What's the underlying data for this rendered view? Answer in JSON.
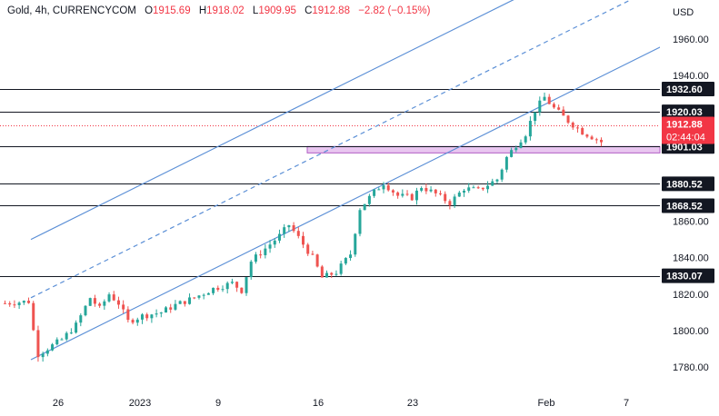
{
  "header": {
    "symbol": "Gold, 4h, CURRENCYCOM",
    "open_label": "O",
    "open": "1915.69",
    "high_label": "H",
    "high": "1918.02",
    "low_label": "L",
    "low": "1909.95",
    "close_label": "C",
    "close": "1912.88",
    "change": "−2.82 (−0.15%)"
  },
  "chart_data": {
    "type": "candlestick",
    "currency": "USD",
    "y_axis": {
      "ticks": [
        1780,
        1800,
        1820,
        1840,
        1860,
        1880,
        1900,
        1920,
        1940,
        1960
      ],
      "range": [
        1772,
        1990
      ]
    },
    "x_axis": {
      "ticks": [
        "26",
        "2023",
        "9",
        "16",
        "23",
        "Feb",
        "7"
      ]
    },
    "horizontal_levels": [
      {
        "label": "1932.60",
        "value": 1932.6
      },
      {
        "label": "1920.03",
        "value": 1920.03
      },
      {
        "label": "1901.03",
        "value": 1901.03
      },
      {
        "label": "1880.52",
        "value": 1880.52
      },
      {
        "label": "1868.52",
        "value": 1868.52
      },
      {
        "label": "1830.07",
        "value": 1830.07
      }
    ],
    "current_price": {
      "value": 1912.88,
      "label": "1912.88",
      "countdown": "02:44:04"
    },
    "support_zone": {
      "low": 1897.5,
      "high": 1901.03
    },
    "channel": {
      "lower": [
        [
          0,
          1784
        ],
        [
          125,
          1956
        ]
      ],
      "middle": [
        [
          0,
          1818
        ],
        [
          125,
          1990
        ]
      ],
      "upper": [
        [
          0,
          1850
        ],
        [
          125,
          2022
        ]
      ]
    },
    "candles": []
  },
  "colors": {
    "up": "#26a69a",
    "down": "#ef5350",
    "channel": "#5b8fd6",
    "zone_fill": "#e9c6f0",
    "zone_edge": "#b15cc4",
    "level_label_bg": "#131722",
    "current_bg": "#f23645"
  }
}
